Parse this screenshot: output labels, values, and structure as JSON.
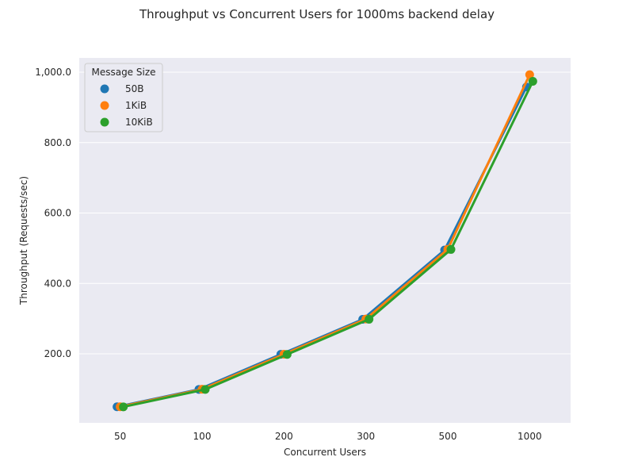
{
  "chart_data": {
    "type": "line",
    "title": "Throughput vs Concurrent Users for 1000ms backend delay",
    "xlabel": "Concurrent Users",
    "ylabel": "Throughput (Requests/sec)",
    "categories": [
      "50",
      "100",
      "200",
      "300",
      "500",
      "1000"
    ],
    "ylim": [
      10,
      1000
    ],
    "yticks": [
      200,
      400,
      600,
      800,
      1000
    ],
    "ytick_labels": [
      "200.0",
      "400.0",
      "600.0",
      "800.0",
      "1,000.0"
    ],
    "grid": true,
    "legend": {
      "title": "Message Size",
      "position": "top-left"
    },
    "series": [
      {
        "name": "50B",
        "color": "#1f77b4",
        "values": [
          49.5,
          99.0,
          198.5,
          298.0,
          495.0,
          958.0
        ]
      },
      {
        "name": "1KiB",
        "color": "#ff7f0e",
        "values": [
          49.7,
          99.3,
          199.0,
          298.8,
          497.0,
          993.0
        ]
      },
      {
        "name": "10KiB",
        "color": "#2ca02c",
        "values": [
          49.4,
          98.9,
          198.3,
          298.2,
          496.5,
          974.0
        ]
      }
    ]
  }
}
